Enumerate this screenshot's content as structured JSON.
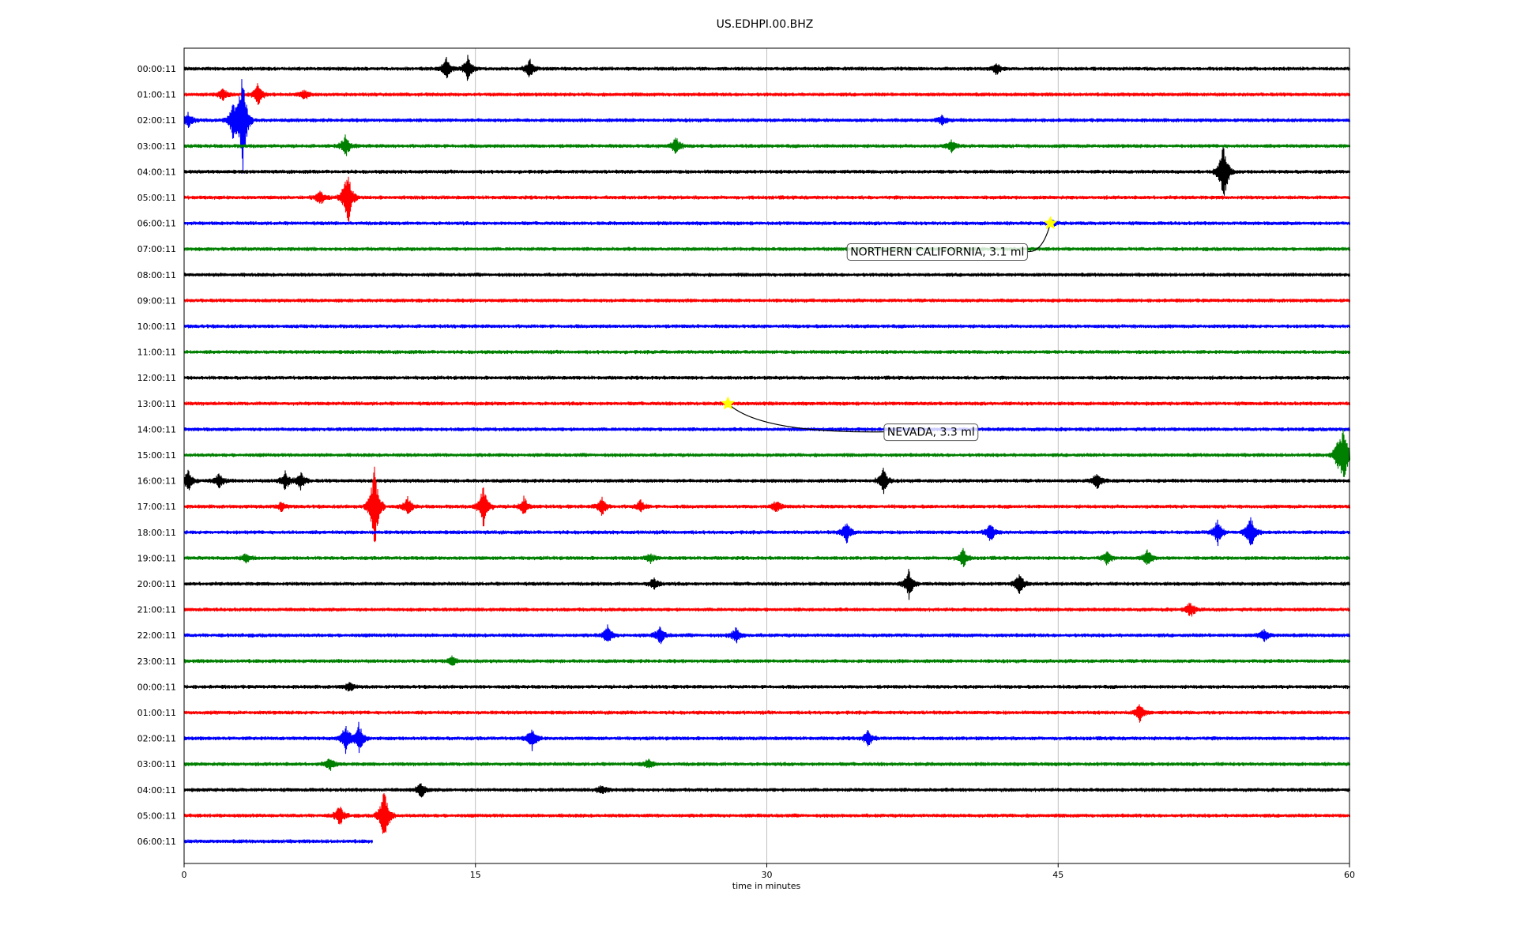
{
  "chart_data": {
    "type": "line",
    "title": "US.EDHPI.00.BHZ",
    "xlabel": "time in minutes",
    "ylabel": "",
    "xlim": [
      0,
      60
    ],
    "xticks": [
      0,
      15,
      30,
      45,
      60
    ],
    "grid": "vertical",
    "colors": [
      "#000000",
      "#ff0000",
      "#0000ff",
      "#008000"
    ],
    "row_labels": [
      "00:00:11",
      "01:00:11",
      "02:00:11",
      "03:00:11",
      "04:00:11",
      "05:00:11",
      "06:00:11",
      "07:00:11",
      "08:00:11",
      "09:00:11",
      "10:00:11",
      "11:00:11",
      "12:00:11",
      "13:00:11",
      "14:00:11",
      "15:00:11",
      "16:00:11",
      "17:00:11",
      "18:00:11",
      "19:00:11",
      "20:00:11",
      "21:00:11",
      "22:00:11",
      "23:00:11",
      "00:00:11",
      "01:00:11",
      "02:00:11",
      "03:00:11",
      "04:00:11",
      "05:00:11",
      "06:00:11"
    ],
    "last_row_end_minute": 9.7,
    "spikes": [
      {
        "row": 0,
        "t": 13.5,
        "a": 14
      },
      {
        "row": 0,
        "t": 14.6,
        "a": 16
      },
      {
        "row": 0,
        "t": 17.8,
        "a": 12
      },
      {
        "row": 0,
        "t": 41.8,
        "a": 8
      },
      {
        "row": 1,
        "t": 2.0,
        "a": 8
      },
      {
        "row": 1,
        "t": 3.8,
        "a": 14
      },
      {
        "row": 1,
        "t": 6.2,
        "a": 6
      },
      {
        "row": 2,
        "t": 0.2,
        "a": 10
      },
      {
        "row": 2,
        "t": 2.5,
        "a": 22
      },
      {
        "row": 2,
        "t": 3.0,
        "a": 70
      },
      {
        "row": 2,
        "t": 39.0,
        "a": 6
      },
      {
        "row": 3,
        "t": 8.3,
        "a": 14
      },
      {
        "row": 3,
        "t": 25.3,
        "a": 12
      },
      {
        "row": 3,
        "t": 39.5,
        "a": 8
      },
      {
        "row": 4,
        "t": 53.5,
        "a": 46
      },
      {
        "row": 5,
        "t": 7.0,
        "a": 10
      },
      {
        "row": 5,
        "t": 8.4,
        "a": 42
      },
      {
        "row": 6,
        "t": 44.7,
        "a": 4
      },
      {
        "row": 15,
        "t": 59.4,
        "a": 14
      },
      {
        "row": 15,
        "t": 59.7,
        "a": 38
      },
      {
        "row": 16,
        "t": 0.2,
        "a": 14
      },
      {
        "row": 16,
        "t": 1.8,
        "a": 10
      },
      {
        "row": 16,
        "t": 5.2,
        "a": 12
      },
      {
        "row": 16,
        "t": 6.0,
        "a": 12
      },
      {
        "row": 16,
        "t": 36.0,
        "a": 16
      },
      {
        "row": 16,
        "t": 47.0,
        "a": 12
      },
      {
        "row": 17,
        "t": 5.0,
        "a": 6
      },
      {
        "row": 17,
        "t": 9.8,
        "a": 60
      },
      {
        "row": 17,
        "t": 11.5,
        "a": 12
      },
      {
        "row": 17,
        "t": 15.4,
        "a": 28
      },
      {
        "row": 17,
        "t": 17.5,
        "a": 12
      },
      {
        "row": 17,
        "t": 21.5,
        "a": 12
      },
      {
        "row": 17,
        "t": 23.5,
        "a": 8
      },
      {
        "row": 17,
        "t": 30.5,
        "a": 8
      },
      {
        "row": 18,
        "t": 34.1,
        "a": 14
      },
      {
        "row": 18,
        "t": 41.5,
        "a": 12
      },
      {
        "row": 18,
        "t": 53.2,
        "a": 16
      },
      {
        "row": 18,
        "t": 54.9,
        "a": 24
      },
      {
        "row": 19,
        "t": 3.2,
        "a": 6
      },
      {
        "row": 19,
        "t": 24.0,
        "a": 6
      },
      {
        "row": 19,
        "t": 40.1,
        "a": 12
      },
      {
        "row": 19,
        "t": 47.5,
        "a": 8
      },
      {
        "row": 19,
        "t": 49.6,
        "a": 12
      },
      {
        "row": 20,
        "t": 24.2,
        "a": 8
      },
      {
        "row": 20,
        "t": 37.3,
        "a": 18
      },
      {
        "row": 20,
        "t": 43.0,
        "a": 14
      },
      {
        "row": 21,
        "t": 51.8,
        "a": 10
      },
      {
        "row": 22,
        "t": 21.8,
        "a": 12
      },
      {
        "row": 22,
        "t": 24.5,
        "a": 12
      },
      {
        "row": 22,
        "t": 28.4,
        "a": 10
      },
      {
        "row": 22,
        "t": 55.6,
        "a": 8
      },
      {
        "row": 23,
        "t": 13.8,
        "a": 6
      },
      {
        "row": 24,
        "t": 8.5,
        "a": 6
      },
      {
        "row": 25,
        "t": 49.2,
        "a": 12
      },
      {
        "row": 26,
        "t": 8.3,
        "a": 18
      },
      {
        "row": 26,
        "t": 9.0,
        "a": 20
      },
      {
        "row": 26,
        "t": 17.9,
        "a": 14
      },
      {
        "row": 26,
        "t": 35.2,
        "a": 10
      },
      {
        "row": 27,
        "t": 7.5,
        "a": 8
      },
      {
        "row": 27,
        "t": 23.9,
        "a": 6
      },
      {
        "row": 28,
        "t": 12.2,
        "a": 10
      },
      {
        "row": 28,
        "t": 21.5,
        "a": 6
      },
      {
        "row": 29,
        "t": 8.0,
        "a": 14
      },
      {
        "row": 29,
        "t": 10.3,
        "a": 38
      }
    ],
    "events": [
      {
        "label": "NORTHERN CALIFORNIA, 3.1 ml",
        "row": 6,
        "minute": 44.6,
        "label_minute": 34.3,
        "label_row": 7.1
      },
      {
        "label": "NEVADA, 3.3 ml",
        "row": 13,
        "minute": 28.0,
        "label_minute": 36.2,
        "label_row": 14.1
      }
    ],
    "marker_color": "#ffff00"
  }
}
